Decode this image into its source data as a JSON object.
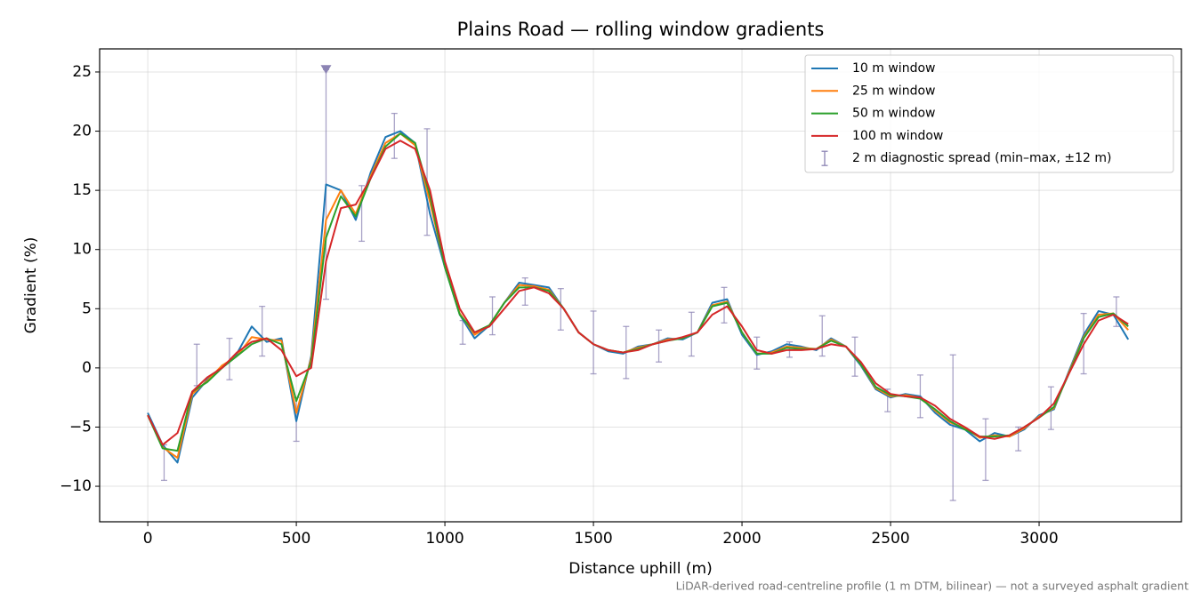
{
  "chart_data": {
    "type": "line",
    "title": "Plains Road — rolling window gradients",
    "xlabel": "Distance uphill (m)",
    "ylabel": "Gradient (%)",
    "footnote": "LiDAR-derived road-centreline profile (1 m DTM, bilinear) — not a surveyed asphalt gradient",
    "xlim": [
      -162,
      3479
    ],
    "ylim": [
      -13,
      26.95
    ],
    "xticks": [
      0,
      500,
      1000,
      1500,
      2000,
      2500,
      3000
    ],
    "yticks": [
      {
        "value": -10,
        "label": "−10"
      },
      {
        "value": -5,
        "label": "−5"
      },
      0,
      5,
      10,
      15,
      20,
      25
    ],
    "grid": true,
    "legend": "upper right",
    "x": [
      0,
      50,
      100,
      150,
      200,
      250,
      300,
      350,
      400,
      450,
      500,
      550,
      600,
      650,
      700,
      750,
      800,
      850,
      900,
      950,
      1000,
      1050,
      1100,
      1150,
      1200,
      1250,
      1300,
      1350,
      1400,
      1450,
      1500,
      1550,
      1600,
      1650,
      1700,
      1750,
      1800,
      1850,
      1900,
      1950,
      2000,
      2050,
      2100,
      2150,
      2200,
      2250,
      2300,
      2350,
      2400,
      2450,
      2500,
      2550,
      2600,
      2650,
      2700,
      2750,
      2800,
      2850,
      2900,
      2950,
      3000,
      3050,
      3100,
      3150,
      3200,
      3250,
      3300
    ],
    "series": [
      {
        "name": "10 m window",
        "color": "#1f77b4",
        "values": [
          -3.8,
          -6.5,
          -8,
          -2.5,
          -1,
          0,
          1.2,
          3.5,
          2.2,
          2.5,
          -4.5,
          1,
          15.5,
          15,
          12.5,
          16.5,
          19.5,
          20,
          19,
          13,
          8.5,
          4.5,
          2.5,
          3.6,
          5.5,
          7.2,
          7,
          6.8,
          5,
          3,
          2,
          1.4,
          1.2,
          1.8,
          2,
          2.5,
          2.4,
          3,
          5.5,
          5.8,
          2.8,
          1.1,
          1.4,
          2,
          1.8,
          1.5,
          2.5,
          1.8,
          0.2,
          -1.8,
          -2.5,
          -2.2,
          -2.4,
          -3.8,
          -4.8,
          -5.2,
          -6.2,
          -5.5,
          -5.8,
          -5.2,
          -4,
          -3.5,
          -0.3,
          2.8,
          4.8,
          4.5,
          2.4
        ]
      },
      {
        "name": "25 m window",
        "color": "#ff7f0e",
        "values": [
          -4,
          -6.7,
          -7.6,
          -2.2,
          -1.1,
          0.2,
          1,
          2.6,
          2.4,
          2.3,
          -3.8,
          0.8,
          12.5,
          15,
          13,
          16.2,
          19,
          19.8,
          18.8,
          14,
          8.6,
          4.6,
          2.8,
          3.6,
          5.5,
          7,
          6.9,
          6.6,
          5,
          3,
          2,
          1.5,
          1.3,
          1.7,
          2,
          2.4,
          2.5,
          3,
          5.3,
          5.6,
          3,
          1.2,
          1.3,
          1.8,
          1.7,
          1.6,
          2.4,
          1.8,
          0.3,
          -1.7,
          -2.4,
          -2.3,
          -2.5,
          -3.6,
          -4.6,
          -5.1,
          -5.9,
          -5.7,
          -5.8,
          -5.1,
          -4.1,
          -3.4,
          -0.4,
          2.6,
          4.5,
          4.6,
          3.2
        ]
      },
      {
        "name": "50 m window",
        "color": "#2ca02c",
        "values": [
          -4,
          -6.8,
          -7,
          -2,
          -1.2,
          0,
          1,
          2,
          2.5,
          2,
          -2.8,
          0.5,
          11,
          14.5,
          12.8,
          16,
          18.7,
          19.8,
          19,
          14.5,
          8.5,
          4.5,
          3,
          3.6,
          5.5,
          6.8,
          6.8,
          6.5,
          5,
          3,
          2,
          1.5,
          1.3,
          1.6,
          2,
          2.3,
          2.5,
          3,
          5.2,
          5.5,
          3,
          1.2,
          1.2,
          1.7,
          1.6,
          1.6,
          2.3,
          1.8,
          0.3,
          -1.6,
          -2.3,
          -2.4,
          -2.6,
          -3.5,
          -4.5,
          -5.2,
          -5.8,
          -5.8,
          -5.7,
          -5,
          -4.2,
          -3.3,
          -0.5,
          2.5,
          4.3,
          4.6,
          3.5
        ]
      },
      {
        "name": "100 m window",
        "color": "#d62728",
        "values": [
          -4,
          -6.5,
          -5.5,
          -2,
          -0.8,
          0,
          1.3,
          2.2,
          2.5,
          1.5,
          -0.7,
          0,
          9,
          13.5,
          13.8,
          16,
          18.5,
          19.2,
          18.5,
          15,
          9,
          5,
          3,
          3.5,
          5,
          6.5,
          6.8,
          6.3,
          5,
          3,
          2,
          1.5,
          1.3,
          1.5,
          2,
          2.3,
          2.6,
          3,
          4.5,
          5.2,
          3.5,
          1.5,
          1.2,
          1.5,
          1.5,
          1.6,
          2,
          1.8,
          0.5,
          -1.3,
          -2.2,
          -2.4,
          -2.5,
          -3.2,
          -4.3,
          -5,
          -5.8,
          -6,
          -5.7,
          -5,
          -4.2,
          -3,
          -0.5,
          2,
          4,
          4.5,
          3.7
        ]
      }
    ],
    "errorbars": {
      "name": "2 m diagnostic spread (min–max, ±12 m)",
      "color": "#8c84b4",
      "x": [
        55,
        165,
        275,
        385,
        500,
        600,
        720,
        830,
        940,
        1060,
        1160,
        1270,
        1390,
        1500,
        1610,
        1720,
        1830,
        1940,
        2050,
        2160,
        2270,
        2380,
        2490,
        2600,
        2710,
        2820,
        2930,
        3040,
        3150,
        3260
      ],
      "low": [
        -9.5,
        -1.5,
        -1,
        1,
        -6.2,
        5.8,
        10.7,
        17.7,
        11.2,
        2,
        2.8,
        5.3,
        3.2,
        -0.5,
        -0.9,
        0.5,
        1,
        3.8,
        -0.1,
        0.9,
        1,
        -0.7,
        -3.7,
        -4.2,
        -11.2,
        -9.5,
        -7,
        -5.2,
        -0.5,
        3.5
      ],
      "high": [
        -6.5,
        2,
        2.5,
        5.2,
        -2.5,
        25.2,
        15.4,
        21.5,
        20.2,
        4,
        6,
        7.6,
        6.7,
        4.8,
        3.5,
        3.2,
        4.7,
        6.8,
        2.6,
        2.2,
        4.4,
        2.6,
        -1.8,
        -0.6,
        1.1,
        -4.3,
        -5,
        -1.6,
        4.6,
        6
      ]
    }
  }
}
